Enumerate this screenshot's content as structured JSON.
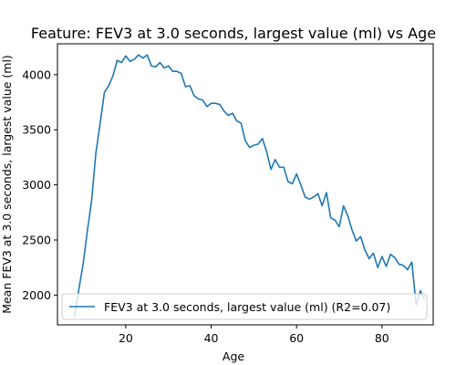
{
  "chart_data": {
    "type": "line",
    "title": "Feature: FEV3 at 3.0 seconds, largest value (ml) vs Age",
    "xlabel": "Age",
    "ylabel": "Mean FEV3 at 3.0 seconds, largest value (ml)",
    "xlim": [
      4,
      92
    ],
    "ylim": [
      1730,
      4280
    ],
    "xticks": [
      20,
      40,
      60,
      80
    ],
    "yticks": [
      2000,
      2500,
      3000,
      3500,
      4000
    ],
    "grid": false,
    "legend_position": "bottom-right",
    "colors": {
      "series": "#1f77b4",
      "axes": "#000000"
    },
    "series": [
      {
        "name": "FEV3 at 3.0 seconds, largest value (ml) (R2=0.07)",
        "x": [
          8,
          9,
          10,
          11,
          12,
          13,
          14,
          15,
          16,
          17,
          18,
          19,
          20,
          21,
          22,
          23,
          24,
          25,
          26,
          27,
          28,
          29,
          30,
          31,
          32,
          33,
          34,
          35,
          36,
          37,
          38,
          39,
          40,
          41,
          42,
          43,
          44,
          45,
          46,
          47,
          48,
          49,
          50,
          51,
          52,
          53,
          54,
          55,
          56,
          57,
          58,
          59,
          60,
          61,
          62,
          63,
          64,
          65,
          66,
          67,
          68,
          69,
          70,
          71,
          72,
          73,
          74,
          75,
          76,
          77,
          78,
          79,
          80,
          81,
          82,
          83,
          84,
          85,
          86,
          87,
          88,
          89,
          90
        ],
        "y": [
          1800,
          2050,
          2280,
          2580,
          2860,
          3290,
          3560,
          3840,
          3900,
          3990,
          4130,
          4110,
          4170,
          4120,
          4140,
          4180,
          4150,
          4180,
          4080,
          4070,
          4110,
          4060,
          4080,
          4030,
          4030,
          4010,
          3890,
          3900,
          3810,
          3780,
          3770,
          3710,
          3740,
          3740,
          3730,
          3670,
          3630,
          3650,
          3580,
          3560,
          3400,
          3340,
          3360,
          3370,
          3420,
          3300,
          3140,
          3230,
          3160,
          3160,
          3030,
          3010,
          3100,
          3000,
          2890,
          2870,
          2890,
          2920,
          2810,
          2930,
          2700,
          2680,
          2620,
          2810,
          2720,
          2590,
          2490,
          2530,
          2410,
          2330,
          2380,
          2250,
          2350,
          2260,
          2370,
          2340,
          2280,
          2270,
          2230,
          2300,
          1910,
          2040,
          1960
        ]
      }
    ]
  }
}
